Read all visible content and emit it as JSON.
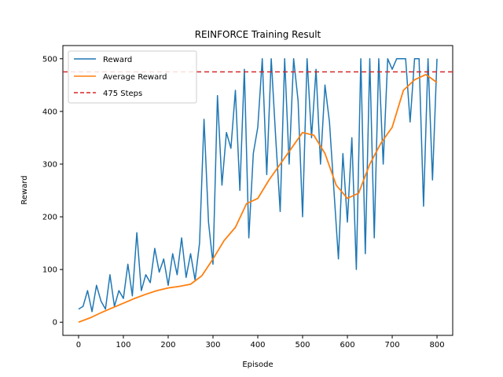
{
  "chart_data": {
    "type": "line",
    "title": "REINFORCE Training Result",
    "xlabel": "Episode",
    "ylabel": "Reward",
    "xlim": [
      -35,
      835
    ],
    "ylim": [
      -25,
      525
    ],
    "xticks": [
      0,
      100,
      200,
      300,
      400,
      500,
      600,
      700,
      800
    ],
    "yticks": [
      0,
      100,
      200,
      300,
      400,
      500
    ],
    "grid": false,
    "legend_position": "top-left",
    "series": [
      {
        "name": "Reward",
        "color": "#1f77b4",
        "style": "solid",
        "x": [
          0,
          10,
          20,
          30,
          40,
          50,
          60,
          70,
          80,
          90,
          100,
          110,
          120,
          130,
          140,
          150,
          160,
          170,
          180,
          190,
          200,
          210,
          220,
          230,
          240,
          250,
          260,
          270,
          280,
          290,
          300,
          310,
          320,
          330,
          340,
          350,
          360,
          370,
          380,
          390,
          400,
          410,
          420,
          430,
          440,
          450,
          460,
          470,
          480,
          490,
          500,
          510,
          520,
          530,
          540,
          550,
          560,
          570,
          580,
          590,
          600,
          610,
          620,
          630,
          640,
          650,
          660,
          670,
          680,
          690,
          700,
          710,
          720,
          730,
          740,
          750,
          760,
          770,
          780,
          790,
          800
        ],
        "values": [
          25,
          30,
          60,
          20,
          70,
          40,
          25,
          90,
          30,
          60,
          45,
          110,
          50,
          170,
          60,
          90,
          75,
          140,
          95,
          120,
          70,
          130,
          90,
          160,
          85,
          130,
          80,
          150,
          385,
          190,
          110,
          430,
          260,
          360,
          330,
          440,
          250,
          480,
          160,
          320,
          370,
          500,
          280,
          500,
          350,
          210,
          500,
          300,
          500,
          420,
          200,
          500,
          350,
          480,
          300,
          450,
          380,
          250,
          120,
          320,
          190,
          350,
          100,
          500,
          130,
          500,
          160,
          500,
          300,
          500,
          480,
          500,
          500,
          500,
          380,
          500,
          500,
          220,
          500,
          270,
          500
        ]
      },
      {
        "name": "Average Reward",
        "color": "#ff7f0e",
        "style": "solid",
        "x": [
          0,
          25,
          50,
          75,
          100,
          125,
          150,
          175,
          200,
          225,
          250,
          275,
          300,
          325,
          350,
          375,
          400,
          425,
          450,
          475,
          500,
          525,
          550,
          575,
          600,
          625,
          650,
          675,
          700,
          725,
          750,
          775,
          800
        ],
        "values": [
          0,
          8,
          18,
          27,
          36,
          45,
          53,
          60,
          65,
          68,
          72,
          88,
          120,
          155,
          180,
          225,
          235,
          270,
          300,
          330,
          360,
          355,
          320,
          260,
          235,
          245,
          300,
          340,
          370,
          440,
          460,
          470,
          455
        ]
      },
      {
        "name": "475 Steps",
        "color": "#d62728",
        "style": "dashed",
        "y": 475
      }
    ]
  }
}
